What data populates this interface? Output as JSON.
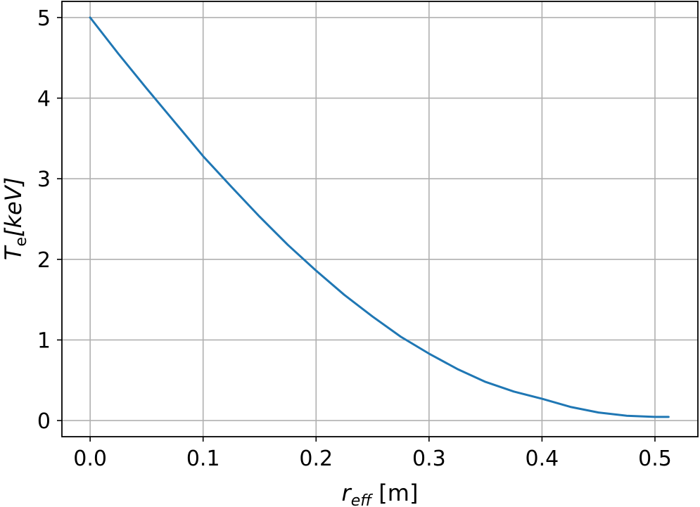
{
  "chart_data": {
    "type": "line",
    "title": "",
    "xlabel": {
      "main": "r",
      "sub": "eff",
      "rest": " [m]"
    },
    "ylabel": {
      "main": "T",
      "sub": "e",
      "rest": "[keV]"
    },
    "xlim": [
      -0.025,
      0.538
    ],
    "ylim": [
      -0.2,
      5.2
    ],
    "xticks": [
      0.0,
      0.1,
      0.2,
      0.3,
      0.4,
      0.5
    ],
    "xtick_labels": [
      "0.0",
      "0.1",
      "0.2",
      "0.3",
      "0.4",
      "0.5"
    ],
    "yticks": [
      0,
      1,
      2,
      3,
      4,
      5
    ],
    "ytick_labels": [
      "0",
      "1",
      "2",
      "3",
      "4",
      "5"
    ],
    "grid": true,
    "series": [
      {
        "color": "#1f77b4",
        "x": [
          0.0,
          0.025,
          0.05,
          0.075,
          0.1,
          0.125,
          0.15,
          0.175,
          0.2,
          0.225,
          0.25,
          0.275,
          0.3,
          0.325,
          0.35,
          0.375,
          0.4,
          0.425,
          0.45,
          0.475,
          0.5,
          0.512
        ],
        "y": [
          5.0,
          4.55,
          4.12,
          3.7,
          3.28,
          2.9,
          2.53,
          2.18,
          1.86,
          1.56,
          1.29,
          1.04,
          0.83,
          0.64,
          0.48,
          0.36,
          0.27,
          0.17,
          0.1,
          0.06,
          0.045,
          0.045
        ]
      }
    ]
  }
}
